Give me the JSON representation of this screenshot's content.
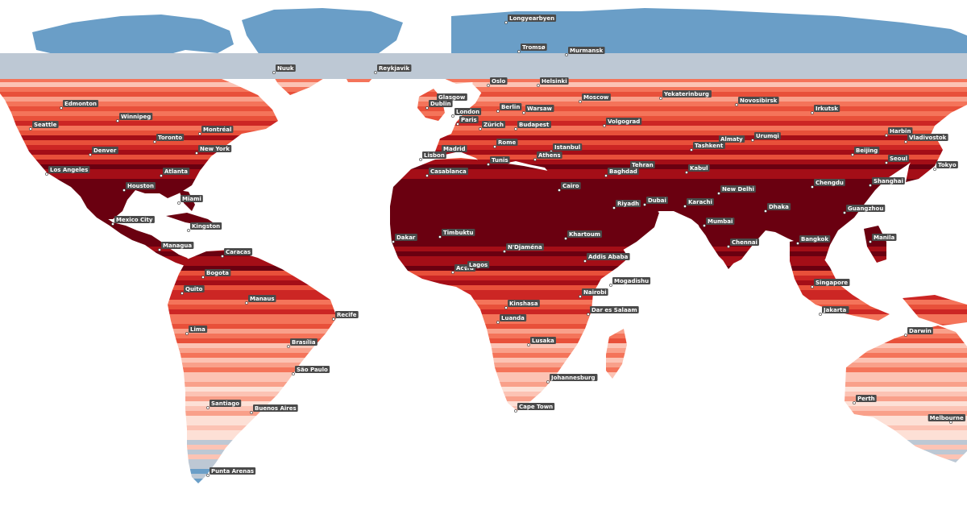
{
  "map": {
    "type": "choropleth-latitude-bands",
    "colors": {
      "ocean": "#ffffff",
      "cold_dark": "#6a9ec7",
      "cold_light": "#bdc8d4",
      "band_palette": [
        "#6a0010",
        "#a40e17",
        "#cc2624",
        "#e8503a",
        "#f4745a",
        "#f9a08a",
        "#fcc3b4",
        "#fde0d6"
      ],
      "label_bg": "#4a4a4a",
      "label_text": "#ffffff",
      "marker": "#ffffff"
    },
    "cities": [
      {
        "name": "Longyearbyen"
      },
      {
        "name": "Tromsø"
      },
      {
        "name": "Murmansk"
      },
      {
        "name": "Nuuk"
      },
      {
        "name": "Reykjavik"
      },
      {
        "name": "Oslo"
      },
      {
        "name": "Helsinki"
      },
      {
        "name": "Edmonton"
      },
      {
        "name": "Glasgow"
      },
      {
        "name": "Moscow"
      },
      {
        "name": "Yekaterinburg"
      },
      {
        "name": "Novosibirsk"
      },
      {
        "name": "Dublin"
      },
      {
        "name": "London"
      },
      {
        "name": "Berlin"
      },
      {
        "name": "Warsaw"
      },
      {
        "name": "Irkutsk"
      },
      {
        "name": "Winnipeg"
      },
      {
        "name": "Paris"
      },
      {
        "name": "Seattle"
      },
      {
        "name": "Zürich"
      },
      {
        "name": "Budapest"
      },
      {
        "name": "Volgograd"
      },
      {
        "name": "Montréal"
      },
      {
        "name": "Harbin"
      },
      {
        "name": "Toronto"
      },
      {
        "name": "Almaty"
      },
      {
        "name": "Urumqi"
      },
      {
        "name": "Vladivostok"
      },
      {
        "name": "Rome"
      },
      {
        "name": "New York"
      },
      {
        "name": "Tashkent"
      },
      {
        "name": "Istanbul"
      },
      {
        "name": "Madrid"
      },
      {
        "name": "Denver"
      },
      {
        "name": "Beijing"
      },
      {
        "name": "Lisbon"
      },
      {
        "name": "Athens"
      },
      {
        "name": "Tunis"
      },
      {
        "name": "Seoul"
      },
      {
        "name": "Tehran"
      },
      {
        "name": "Kabul"
      },
      {
        "name": "Tokyo"
      },
      {
        "name": "Los Angeles"
      },
      {
        "name": "Atlanta"
      },
      {
        "name": "Casablanca"
      },
      {
        "name": "Baghdad"
      },
      {
        "name": "Shanghai"
      },
      {
        "name": "Chengdu"
      },
      {
        "name": "Houston"
      },
      {
        "name": "Cairo"
      },
      {
        "name": "New Delhi"
      },
      {
        "name": "Miami"
      },
      {
        "name": "Dubai"
      },
      {
        "name": "Karachi"
      },
      {
        "name": "Riyadh"
      },
      {
        "name": "Dhaka"
      },
      {
        "name": "Guangzhou"
      },
      {
        "name": "Mexico City"
      },
      {
        "name": "Mumbai"
      },
      {
        "name": "Kingston"
      },
      {
        "name": "Timbuktu"
      },
      {
        "name": "Khartoum"
      },
      {
        "name": "Manila"
      },
      {
        "name": "Dakar"
      },
      {
        "name": "Bangkok"
      },
      {
        "name": "Chennai"
      },
      {
        "name": "Managua"
      },
      {
        "name": "N'Djaména"
      },
      {
        "name": "Caracas"
      },
      {
        "name": "Addis Ababa"
      },
      {
        "name": "Accra"
      },
      {
        "name": "Lagos"
      },
      {
        "name": "Bogota"
      },
      {
        "name": "Mogadishu"
      },
      {
        "name": "Singapore"
      },
      {
        "name": "Quito"
      },
      {
        "name": "Nairobi"
      },
      {
        "name": "Manaus"
      },
      {
        "name": "Kinshasa"
      },
      {
        "name": "Dar es Salaam"
      },
      {
        "name": "Jakarta"
      },
      {
        "name": "Luanda"
      },
      {
        "name": "Recife"
      },
      {
        "name": "Darwin"
      },
      {
        "name": "Lima"
      },
      {
        "name": "Lusaka"
      },
      {
        "name": "Brasília"
      },
      {
        "name": "São Paulo"
      },
      {
        "name": "Johannesburg"
      },
      {
        "name": "Perth"
      },
      {
        "name": "Santiago"
      },
      {
        "name": "Buenos Aires"
      },
      {
        "name": "Cape Town"
      },
      {
        "name": "Melbourne"
      },
      {
        "name": "Punta Arenas"
      }
    ]
  }
}
